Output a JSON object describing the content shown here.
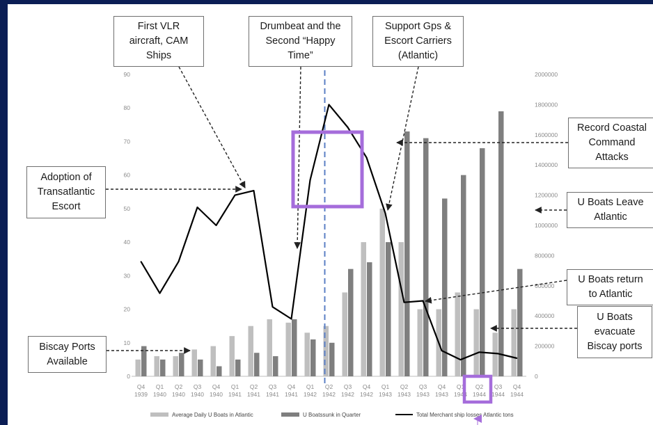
{
  "chart_data": {
    "type": "bar",
    "categories": [
      [
        "Q4",
        "1939"
      ],
      [
        "Q1",
        "1940"
      ],
      [
        "Q2",
        "1940"
      ],
      [
        "Q3",
        "1940"
      ],
      [
        "Q4",
        "1940"
      ],
      [
        "Q1",
        "1941"
      ],
      [
        "Q2",
        "1941"
      ],
      [
        "Q3",
        "1941"
      ],
      [
        "Q4",
        "1941"
      ],
      [
        "Q1",
        "1942"
      ],
      [
        "Q2",
        "1942"
      ],
      [
        "Q3",
        "1942"
      ],
      [
        "Q4",
        "1942"
      ],
      [
        "Q1",
        "1943"
      ],
      [
        "Q2",
        "1943"
      ],
      [
        "Q3",
        "1943"
      ],
      [
        "Q4",
        "1943"
      ],
      [
        "Q1",
        "1944"
      ],
      [
        "Q2",
        "1944"
      ],
      [
        "Q3",
        "1944"
      ],
      [
        "Q4",
        "1944"
      ]
    ],
    "series": [
      {
        "name": "Average Daily U Boats in Atlantic",
        "kind": "bar",
        "axis": "left",
        "color": "#bfbfbf",
        "values": [
          5,
          6,
          6,
          8,
          9,
          12,
          15,
          17,
          16,
          13,
          15,
          25,
          40,
          50,
          40,
          20,
          20,
          25,
          20,
          13,
          20
        ]
      },
      {
        "name": "U Boatssunk in Quarter",
        "kind": "bar",
        "axis": "left",
        "color": "#7f7f7f",
        "values": [
          9,
          5,
          7,
          5,
          3,
          5,
          7,
          6,
          17,
          11,
          10,
          32,
          34,
          40,
          73,
          71,
          53,
          60,
          68,
          79,
          32
        ]
      },
      {
        "name": "Total Merchant ship losses Atlantic tons",
        "kind": "line",
        "axis": "right",
        "color": "#000000",
        "values": [
          760000,
          550000,
          760000,
          1120000,
          1000000,
          1200000,
          1230000,
          460000,
          380000,
          1300000,
          1800000,
          1650000,
          1450000,
          1080000,
          490000,
          500000,
          170000,
          110000,
          160000,
          150000,
          120000
        ]
      }
    ],
    "ylim_left": [
      0,
      90
    ],
    "yticks_left": [
      "0",
      "10",
      "20",
      "30",
      "40",
      "50",
      "60",
      "70",
      "80",
      "90"
    ],
    "ylim_right": [
      0,
      2000000
    ],
    "yticks_right": [
      "0",
      "200000",
      "400000",
      "600000",
      "800000",
      "1000000",
      "1200000",
      "1400000",
      "1600000",
      "1800000",
      "2000000"
    ],
    "marker_category_index": 10,
    "colors": {
      "marker_line": "#5b7fc4",
      "highlight_box": "#a56ddb",
      "arrow": "#222222"
    }
  },
  "callouts": {
    "vlr": "First VLR\naircraft, CAM\nShips",
    "drumbeat": "Drumbeat and the\nSecond “Happy\nTime”",
    "support": "Support Gps &\nEscort Carriers\n(Atlantic)",
    "transatlantic": "Adoption of\nTransatlantic\nEscort",
    "coastal": "Record Coastal\nCommand\nAttacks",
    "leave": "U Boats Leave\nAtlantic",
    "return": "U Boats return\nto Atlantic",
    "evacuate": "U Boats\nevacuate\nBiscay ports",
    "biscay": "Biscay Ports\nAvailable"
  }
}
